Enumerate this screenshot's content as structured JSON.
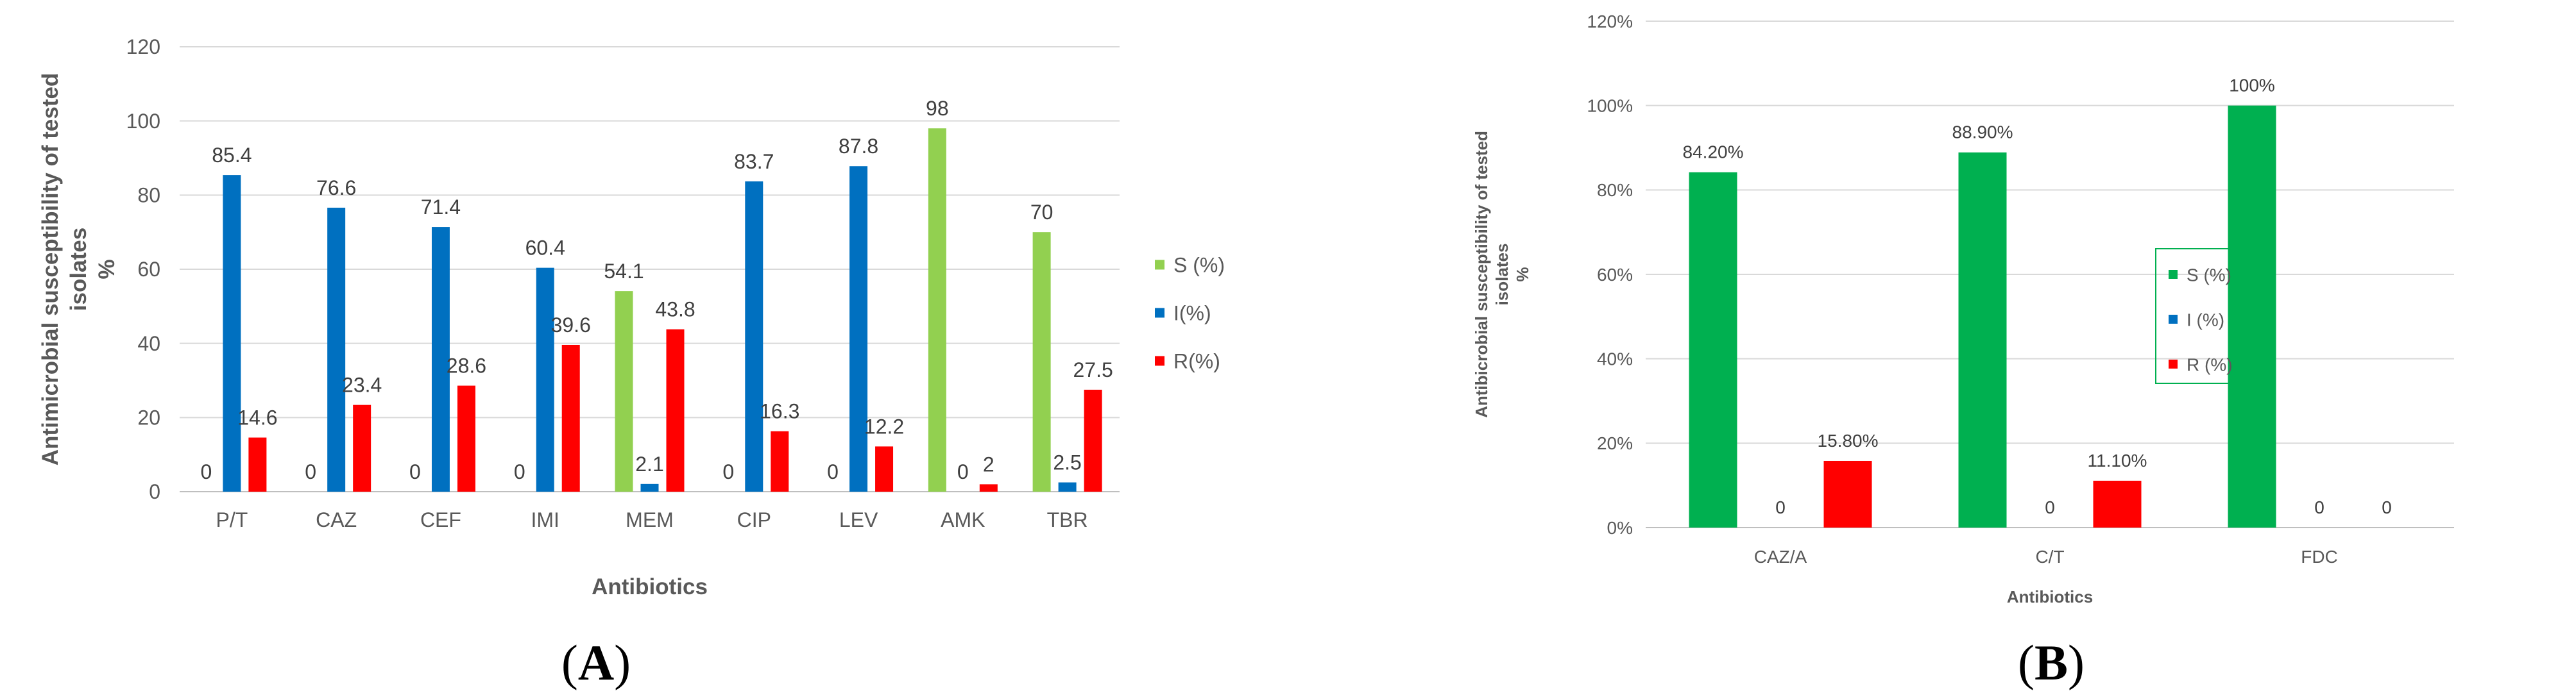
{
  "chart_data": [
    {
      "type": "bar",
      "panel_label": "(A)",
      "title": "",
      "xlabel": "Antibiotics",
      "ylabel_lines": [
        "Antimicrobial susceptibility of tested",
        "isolates",
        "%"
      ],
      "ylim": [
        0,
        120
      ],
      "yticks": [
        "0",
        "20",
        "40",
        "60",
        "80",
        "100",
        "120"
      ],
      "grid": true,
      "legend_position": "right",
      "categories": [
        "P/T",
        "CAZ",
        "CEF",
        "IMI",
        "MEM",
        "CIP",
        "LEV",
        "AMK",
        "TBR"
      ],
      "series": [
        {
          "name": "S (%)",
          "color": "#92d050",
          "values": [
            0,
            0,
            0,
            0,
            54.1,
            0,
            0,
            98,
            70
          ],
          "labels": [
            "0",
            "0",
            "0",
            "0",
            "54.1",
            "0",
            "0",
            "98",
            "70"
          ]
        },
        {
          "name": "I(%)",
          "color": "#0070c0",
          "values": [
            85.4,
            76.6,
            71.4,
            60.4,
            2.1,
            83.7,
            87.8,
            0,
            2.5
          ],
          "labels": [
            "85.4",
            "76.6",
            "71.4",
            "60.4",
            "2.1",
            "83.7",
            "87.8",
            "0",
            "2.5"
          ]
        },
        {
          "name": "R(%)",
          "color": "#ff0000",
          "values": [
            14.6,
            23.4,
            28.6,
            39.6,
            43.8,
            16.3,
            12.2,
            2,
            27.5
          ],
          "labels": [
            "14.6",
            "23.4",
            "28.6",
            "39.6",
            "43.8",
            "16.3",
            "12.2",
            "2",
            "27.5"
          ]
        }
      ]
    },
    {
      "type": "bar",
      "panel_label": "(B)",
      "title": "",
      "xlabel": "Antibiotics",
      "ylabel_lines": [
        "Antibicrobial susceptibility of tested",
        "isolates",
        "%"
      ],
      "ylim": [
        0,
        1.2
      ],
      "yticks": [
        "0%",
        "20%",
        "40%",
        "60%",
        "80%",
        "100%",
        "120%"
      ],
      "grid": true,
      "legend_position": "right",
      "categories": [
        "CAZ/A",
        "C/T",
        "FDC"
      ],
      "series": [
        {
          "name": "S (%)",
          "color": "#00b050",
          "values": [
            0.842,
            0.889,
            1.0
          ],
          "labels": [
            "84.20%",
            "88.90%",
            "100%"
          ]
        },
        {
          "name": "I (%)",
          "color": "#0070c0",
          "values": [
            0,
            0,
            0
          ],
          "labels": [
            "0",
            "0",
            "0"
          ]
        },
        {
          "name": "R (%)",
          "color": "#ff0000",
          "values": [
            0.158,
            0.111,
            0
          ],
          "labels": [
            "15.80%",
            "11.10%",
            "0"
          ]
        }
      ]
    }
  ]
}
